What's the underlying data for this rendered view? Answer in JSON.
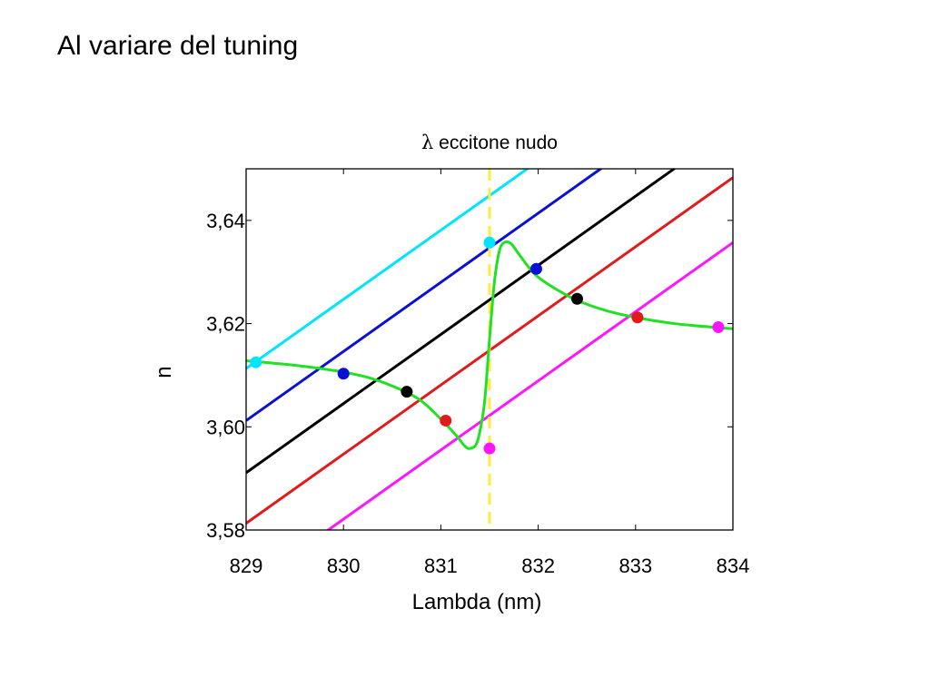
{
  "slide": {
    "title": "Al variare del tuning"
  },
  "chart_data": {
    "type": "line",
    "xlabel": "Lambda (nm)",
    "ylabel": "n",
    "xlim": [
      829,
      834
    ],
    "ylim": [
      3.58,
      3.65
    ],
    "x_ticks": [
      829,
      830,
      831,
      832,
      833,
      834
    ],
    "x_tick_labels": [
      "829",
      "830",
      "831",
      "832",
      "833",
      "834"
    ],
    "y_ticks": [
      3.58,
      3.6,
      3.62,
      3.64
    ],
    "y_tick_labels": [
      "3,58",
      "3,60",
      "3,62",
      "3,64"
    ],
    "grid": false,
    "annotation": {
      "symbol": "λ",
      "label": "eccitone nudo",
      "x": 831.5,
      "color": "#ffeb3b"
    },
    "series": [
      {
        "color": "#00e5ff",
        "slope": 0.0134,
        "intercept_at_829": 3.6113,
        "point": [
          829.1,
          3.6125
        ]
      },
      {
        "color": "#0a10d6",
        "slope": 0.0134,
        "intercept_at_829": 3.6012,
        "point": [
          830.0,
          3.6103
        ]
      },
      {
        "color": "#000000",
        "slope": 0.0134,
        "intercept_at_829": 3.5911,
        "point": [
          830.65,
          3.6068
        ]
      },
      {
        "color": "#e31a1c",
        "slope": 0.0134,
        "intercept_at_829": 3.5813,
        "point": [
          831.05,
          3.6012
        ]
      },
      {
        "color": "#ff14ff",
        "slope": 0.0134,
        "intercept_at_829": 3.5687,
        "point": [
          833.85,
          3.6193
        ]
      }
    ],
    "crossing_points": [
      {
        "x": 831.5,
        "y": 3.6357,
        "color": "#00e5ff"
      },
      {
        "x": 831.5,
        "y": 3.5958,
        "color": "#ff14ff"
      },
      {
        "x": 831.98,
        "y": 3.6306,
        "color": "#0a10d6"
      },
      {
        "x": 832.4,
        "y": 3.6248,
        "color": "#000000"
      },
      {
        "x": 833.02,
        "y": 3.6212,
        "color": "#e31a1c"
      }
    ],
    "dispersion_curve": {
      "color": "#22e022",
      "x": [
        829.0,
        829.3,
        829.6,
        830.0,
        830.3,
        830.6,
        830.8,
        831.0,
        831.15,
        831.25,
        831.3,
        831.36,
        831.4,
        831.45,
        831.5,
        831.55,
        831.6,
        831.65,
        831.72,
        831.8,
        831.9,
        832.0,
        832.2,
        832.4,
        832.7,
        833.0,
        833.4,
        833.8,
        834.0
      ],
      "y": [
        3.6128,
        3.6123,
        3.6117,
        3.6106,
        3.6093,
        3.6071,
        3.605,
        3.6015,
        3.5985,
        3.5962,
        3.5958,
        3.5965,
        3.599,
        3.605,
        3.617,
        3.628,
        3.634,
        3.6357,
        3.6355,
        3.6335,
        3.631,
        3.629,
        3.6265,
        3.6245,
        3.6225,
        3.6212,
        3.62,
        3.6193,
        3.619
      ]
    }
  }
}
